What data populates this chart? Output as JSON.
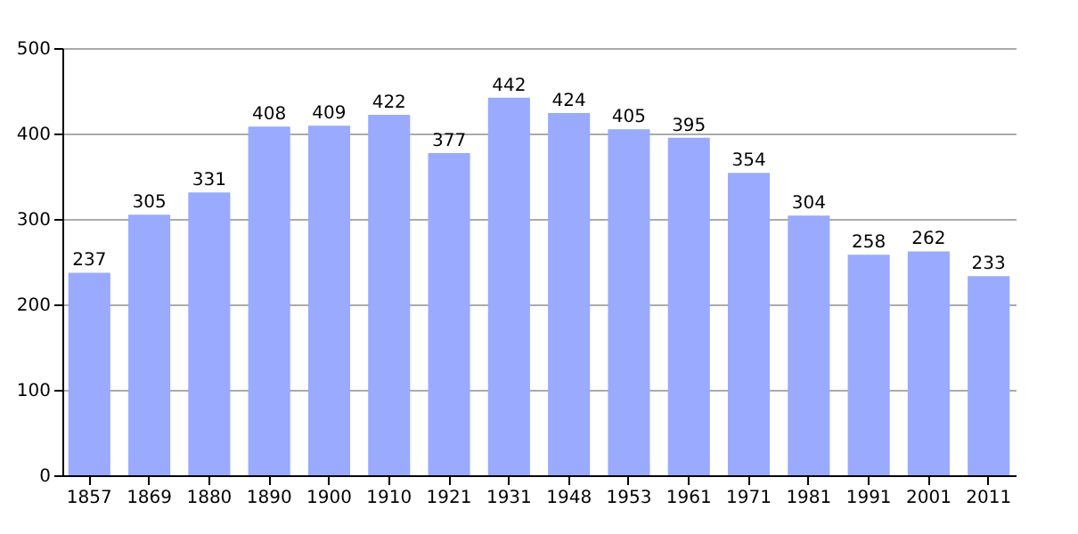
{
  "chart_data": {
    "type": "bar",
    "categories": [
      "1857",
      "1869",
      "1880",
      "1890",
      "1900",
      "1910",
      "1921",
      "1931",
      "1948",
      "1953",
      "1961",
      "1971",
      "1981",
      "1991",
      "2001",
      "2011"
    ],
    "values": [
      237,
      305,
      331,
      408,
      409,
      422,
      377,
      442,
      424,
      405,
      395,
      354,
      304,
      258,
      262,
      233
    ],
    "color": "#99aaff",
    "ylim": [
      0,
      500
    ],
    "yticks": [
      0,
      100,
      200,
      300,
      400,
      500
    ],
    "grid": "y",
    "data_labels": true
  }
}
